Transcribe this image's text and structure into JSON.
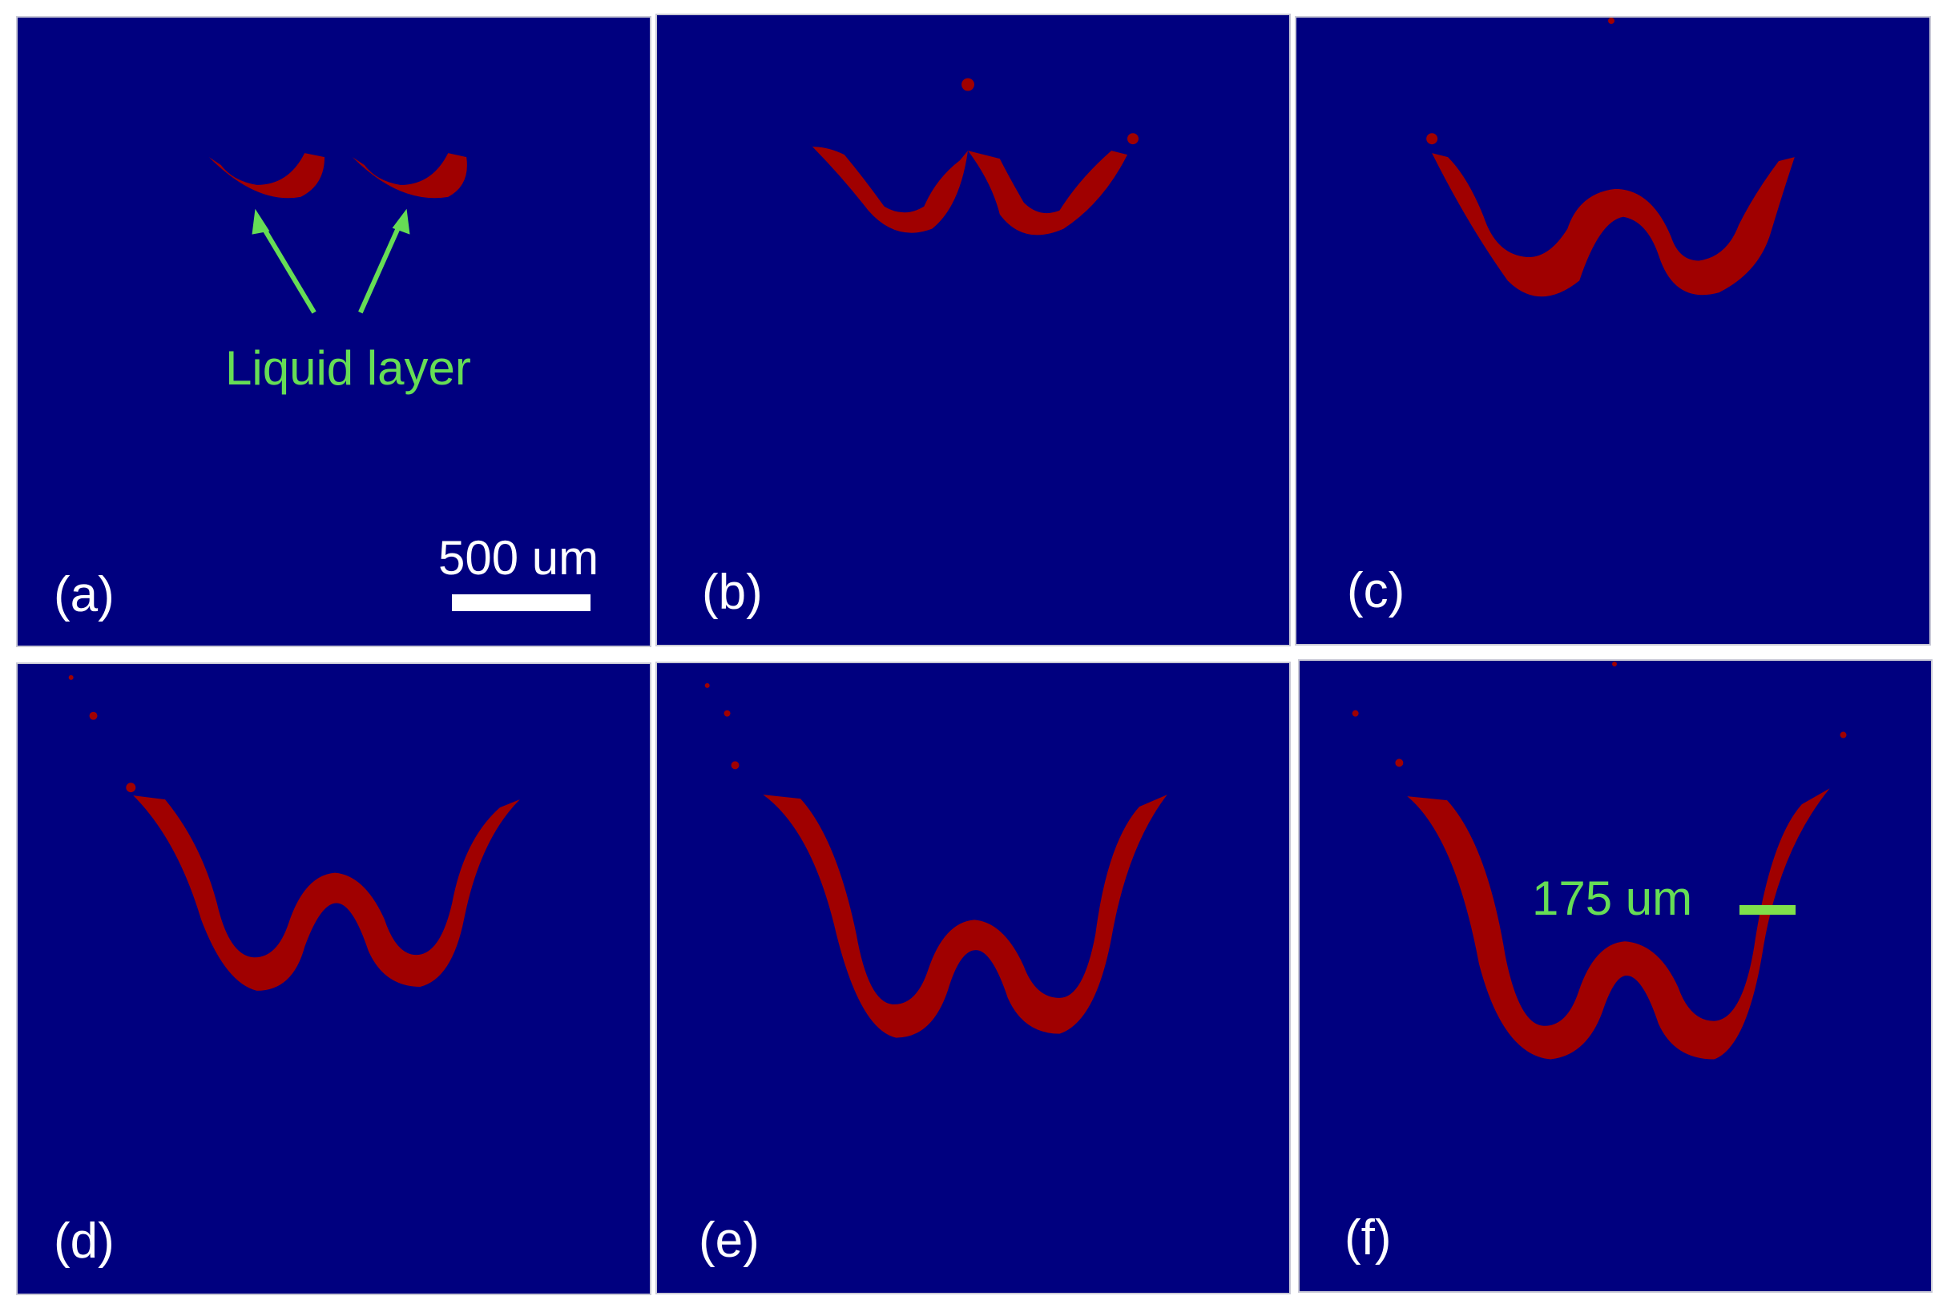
{
  "figure": {
    "background_color": "#00007f",
    "liquid_color": "#a00000",
    "annotation_color": "#66dd55",
    "panels": [
      {
        "label": "(a)"
      },
      {
        "label": "(b)"
      },
      {
        "label": "(c)"
      },
      {
        "label": "(d)"
      },
      {
        "label": "(e)"
      },
      {
        "label": "(f)"
      }
    ],
    "annotations": {
      "liquid_layer": "Liquid layer",
      "scale_bar": "500 um",
      "thickness": "175 um"
    }
  }
}
